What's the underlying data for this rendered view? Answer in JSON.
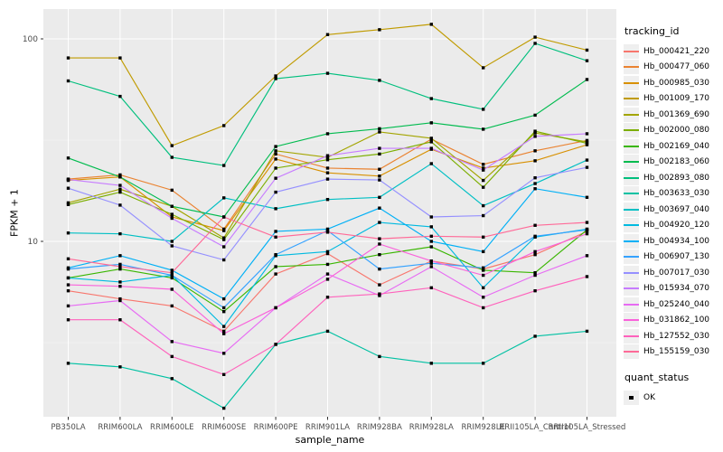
{
  "figure": {
    "x_axis_title": "sample_name",
    "y_axis_title": "FPKM + 1",
    "legend_title": "tracking_id",
    "quant_legend_title": "quant_status",
    "quant_ok_label": "OK"
  },
  "colors": {
    "panel_bg": "#EBEBEB",
    "grid_major": "#FFFFFF",
    "grid_minor": "#F5F5F5",
    "tick_mark": "#333333",
    "tick_text": "#4D4D4D",
    "point": "#000000",
    "legend_key_bg": "#EFEFEF"
  },
  "chart_data": {
    "type": "line",
    "title": "",
    "xlabel": "sample_name",
    "ylabel": "FPKM + 1",
    "y_scale": "log10",
    "ylim": [
      1.35,
      140
    ],
    "y_ticks": [
      10,
      100
    ],
    "grid": "on",
    "legend_position": "right",
    "legend_title": "tracking_id",
    "point_marker": {
      "shape": "square",
      "color": "#000000",
      "status_label": "OK"
    },
    "categories": [
      "PB350LA",
      "RRIM600LA",
      "RRIM600LE",
      "RRIM600SE",
      "RRIM600PE",
      "RRIM901LA",
      "RRIM928BA",
      "RRIM928LA",
      "RRIM928LE",
      "RRII105LA_Control",
      "RRII105LA_Stressed"
    ],
    "series": [
      {
        "name": "Hb_000421_220",
        "color": "#F8766D",
        "values": [
          5.7,
          5.2,
          4.8,
          3.6,
          6.9,
          8.7,
          6.1,
          8.0,
          7.3,
          8.6,
          11.2
        ]
      },
      {
        "name": "Hb_000477_060",
        "color": "#EA8331",
        "values": [
          20.3,
          21.3,
          17.9,
          11.5,
          27.0,
          23.0,
          22.7,
          32.0,
          24.0,
          28.0,
          31.5
        ]
      },
      {
        "name": "Hb_000985_030",
        "color": "#D89000",
        "values": [
          20.0,
          20.8,
          13.2,
          11.3,
          25.5,
          21.8,
          21.0,
          28.5,
          23.0,
          25.0,
          30.0
        ]
      },
      {
        "name": "Hb_001009_170",
        "color": "#C09B00",
        "values": [
          80.5,
          80.5,
          29.7,
          37.3,
          65.6,
          105,
          111,
          118,
          72,
          102,
          88
        ]
      },
      {
        "name": "Hb_001369_690",
        "color": "#A3A500",
        "values": [
          15.5,
          18.1,
          14.9,
          10.4,
          28.0,
          26.0,
          34.7,
          32.3,
          20.0,
          34.3,
          31.0
        ]
      },
      {
        "name": "Hb_002000_080",
        "color": "#7CAE00",
        "values": [
          15.2,
          17.5,
          13.6,
          10.2,
          23.0,
          25.3,
          27.0,
          31.0,
          18.5,
          35.0,
          30.5
        ]
      },
      {
        "name": "Hb_002169_040",
        "color": "#39B600",
        "values": [
          6.6,
          7.3,
          6.6,
          4.5,
          7.5,
          7.7,
          8.6,
          9.4,
          7.2,
          7.0,
          11.4
        ]
      },
      {
        "name": "Hb_002183_060",
        "color": "#00BB4E",
        "values": [
          25.8,
          20.8,
          14.9,
          13.2,
          29.4,
          34.0,
          36.0,
          38.5,
          35.8,
          42.0,
          63.0
        ]
      },
      {
        "name": "Hb_002893_080",
        "color": "#00BF7D",
        "values": [
          62,
          52,
          26,
          23.7,
          63.6,
          67.6,
          62.4,
          50.7,
          44.9,
          95,
          78
        ]
      },
      {
        "name": "Hb_003633_030",
        "color": "#00C1A3",
        "values": [
          2.5,
          2.4,
          2.1,
          1.5,
          3.1,
          3.6,
          2.7,
          2.5,
          2.5,
          3.4,
          3.6
        ]
      },
      {
        "name": "Hb_003697_040",
        "color": "#00BFC4",
        "values": [
          11.0,
          10.9,
          10.0,
          16.4,
          14.5,
          16.1,
          16.5,
          24.2,
          15.0,
          19.3,
          25.2
        ]
      },
      {
        "name": "Hb_004920_120",
        "color": "#00BAE0",
        "values": [
          6.6,
          6.3,
          6.8,
          3.8,
          8.5,
          8.9,
          12.4,
          11.8,
          5.9,
          10.5,
          11.5
        ]
      },
      {
        "name": "Hb_004934_100",
        "color": "#00B0F6",
        "values": [
          7.4,
          8.5,
          7.2,
          5.2,
          11.2,
          11.5,
          14.6,
          10.0,
          8.9,
          18.2,
          16.5
        ]
      },
      {
        "name": "Hb_006907_130",
        "color": "#35A2FF",
        "values": [
          7.3,
          7.7,
          6.8,
          4.7,
          8.6,
          11.3,
          7.3,
          7.8,
          7.4,
          10.6,
          11.4
        ]
      },
      {
        "name": "Hb_007017_030",
        "color": "#9590FF",
        "values": [
          18.3,
          15.1,
          9.5,
          8.1,
          17.5,
          20.3,
          20.1,
          13.2,
          13.4,
          20.6,
          23.2
        ]
      },
      {
        "name": "Hb_015934_070",
        "color": "#C77CFF",
        "values": [
          20.2,
          18.9,
          13.0,
          9.4,
          20.5,
          26.5,
          28.8,
          28.8,
          22.5,
          33.0,
          34.0
        ]
      },
      {
        "name": "Hb_025240_040",
        "color": "#E76BF3",
        "values": [
          4.8,
          5.1,
          3.2,
          2.8,
          4.7,
          6.9,
          5.4,
          7.5,
          5.3,
          6.8,
          8.5
        ]
      },
      {
        "name": "Hb_031862_100",
        "color": "#FA62DB",
        "values": [
          6.1,
          6.0,
          5.8,
          3.5,
          4.7,
          6.5,
          9.7,
          8.0,
          6.8,
          8.9,
          10.9
        ]
      },
      {
        "name": "Hb_127552_030",
        "color": "#FF62BC",
        "values": [
          4.1,
          4.1,
          2.7,
          2.2,
          3.1,
          5.3,
          5.5,
          5.9,
          4.7,
          5.7,
          6.7
        ]
      },
      {
        "name": "Hb_155159_030",
        "color": "#FF6A98",
        "values": [
          8.2,
          7.5,
          7.0,
          13.2,
          10.5,
          11.1,
          10.3,
          10.6,
          10.5,
          12.0,
          12.4
        ]
      }
    ]
  }
}
